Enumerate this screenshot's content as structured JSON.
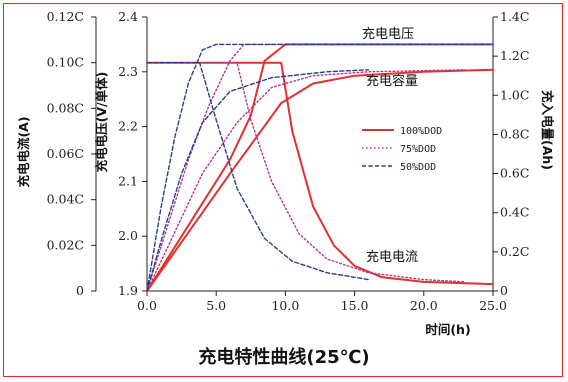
{
  "chart_data": {
    "type": "line",
    "title": "充电特性曲线(25℃)",
    "xlabel": "时间(h)",
    "ylabel_voltage": "充电电压(V/单体)",
    "ylabel_current": "充电电流(A)",
    "ylabel_capacity": "充入电量(Ah)",
    "xlim": [
      0,
      25
    ],
    "x_ticks": [
      "0.0",
      "5.0",
      "10.0",
      "15.0",
      "20.0",
      "25.0"
    ],
    "ylim_voltage": [
      1.9,
      2.4
    ],
    "voltage_ticks": [
      "1.9",
      "2.0",
      "2.1",
      "2.2",
      "2.3",
      "2.4"
    ],
    "ylim_current": [
      0,
      0.12
    ],
    "current_ticks": [
      "0",
      "0.02C",
      "0.04C",
      "0.06C",
      "0.08C",
      "0.10C",
      "0.12C"
    ],
    "ylim_capacity": [
      0,
      1.4
    ],
    "capacity_ticks": [
      "0",
      "0.2C",
      "0.4C",
      "0.6C",
      "0.8C",
      "1.0C",
      "1.2C",
      "1.4C"
    ],
    "annotations": {
      "voltage": "充电电压",
      "capacity": "充电容量",
      "current": "充电电流"
    },
    "colors": {
      "dod100": "#e03030",
      "dod75": "#c0308a",
      "dod50": "#2a3e8c"
    },
    "series": [
      {
        "name": "100%DOD",
        "style": "solid",
        "voltage": [
          [
            0,
            1.9
          ],
          [
            2,
            1.98
          ],
          [
            4,
            2.06
          ],
          [
            6,
            2.14
          ],
          [
            7.5,
            2.22
          ],
          [
            8.5,
            2.32
          ],
          [
            10,
            2.35
          ],
          [
            25,
            2.35
          ]
        ],
        "current": [
          [
            0,
            0.1
          ],
          [
            9.7,
            0.1
          ],
          [
            10.5,
            0.07
          ],
          [
            12,
            0.037
          ],
          [
            13.5,
            0.02
          ],
          [
            15,
            0.011
          ],
          [
            17,
            0.006
          ],
          [
            20,
            0.004
          ],
          [
            25,
            0.003
          ]
        ],
        "capacity": [
          [
            0,
            0
          ],
          [
            3,
            0.3
          ],
          [
            6,
            0.6
          ],
          [
            9.7,
            0.96
          ],
          [
            12,
            1.06
          ],
          [
            15,
            1.1
          ],
          [
            20,
            1.12
          ],
          [
            25,
            1.13
          ]
        ]
      },
      {
        "name": "75%DOD",
        "style": "dotted",
        "voltage": [
          [
            0,
            1.9
          ],
          [
            1.5,
            2.02
          ],
          [
            3,
            2.14
          ],
          [
            4.5,
            2.24
          ],
          [
            6,
            2.32
          ],
          [
            7,
            2.35
          ],
          [
            25,
            2.35
          ]
        ],
        "current": [
          [
            0,
            0.1
          ],
          [
            6.5,
            0.1
          ],
          [
            7.5,
            0.075
          ],
          [
            9,
            0.048
          ],
          [
            11,
            0.025
          ],
          [
            13,
            0.014
          ],
          [
            16,
            0.008
          ],
          [
            20,
            0.005
          ],
          [
            23,
            0.004
          ]
        ],
        "capacity": [
          [
            0,
            0
          ],
          [
            2,
            0.3
          ],
          [
            4,
            0.6
          ],
          [
            6.5,
            0.86
          ],
          [
            9,
            1.04
          ],
          [
            12,
            1.1
          ],
          [
            16,
            1.12
          ],
          [
            23,
            1.13
          ]
        ]
      },
      {
        "name": "50%DOD",
        "style": "dashed",
        "voltage": [
          [
            0,
            1.9
          ],
          [
            1,
            2.05
          ],
          [
            2,
            2.18
          ],
          [
            3,
            2.28
          ],
          [
            4,
            2.34
          ],
          [
            5,
            2.35
          ],
          [
            25,
            2.35
          ]
        ],
        "current": [
          [
            0,
            0.1
          ],
          [
            3.8,
            0.1
          ],
          [
            5,
            0.075
          ],
          [
            6.5,
            0.045
          ],
          [
            8.5,
            0.023
          ],
          [
            10.5,
            0.013
          ],
          [
            13,
            0.008
          ],
          [
            16,
            0.005
          ]
        ],
        "capacity": [
          [
            0,
            0
          ],
          [
            1.2,
            0.3
          ],
          [
            2.5,
            0.6
          ],
          [
            4,
            0.86
          ],
          [
            6,
            1.02
          ],
          [
            9,
            1.09
          ],
          [
            13,
            1.12
          ],
          [
            16,
            1.13
          ]
        ]
      }
    ]
  }
}
